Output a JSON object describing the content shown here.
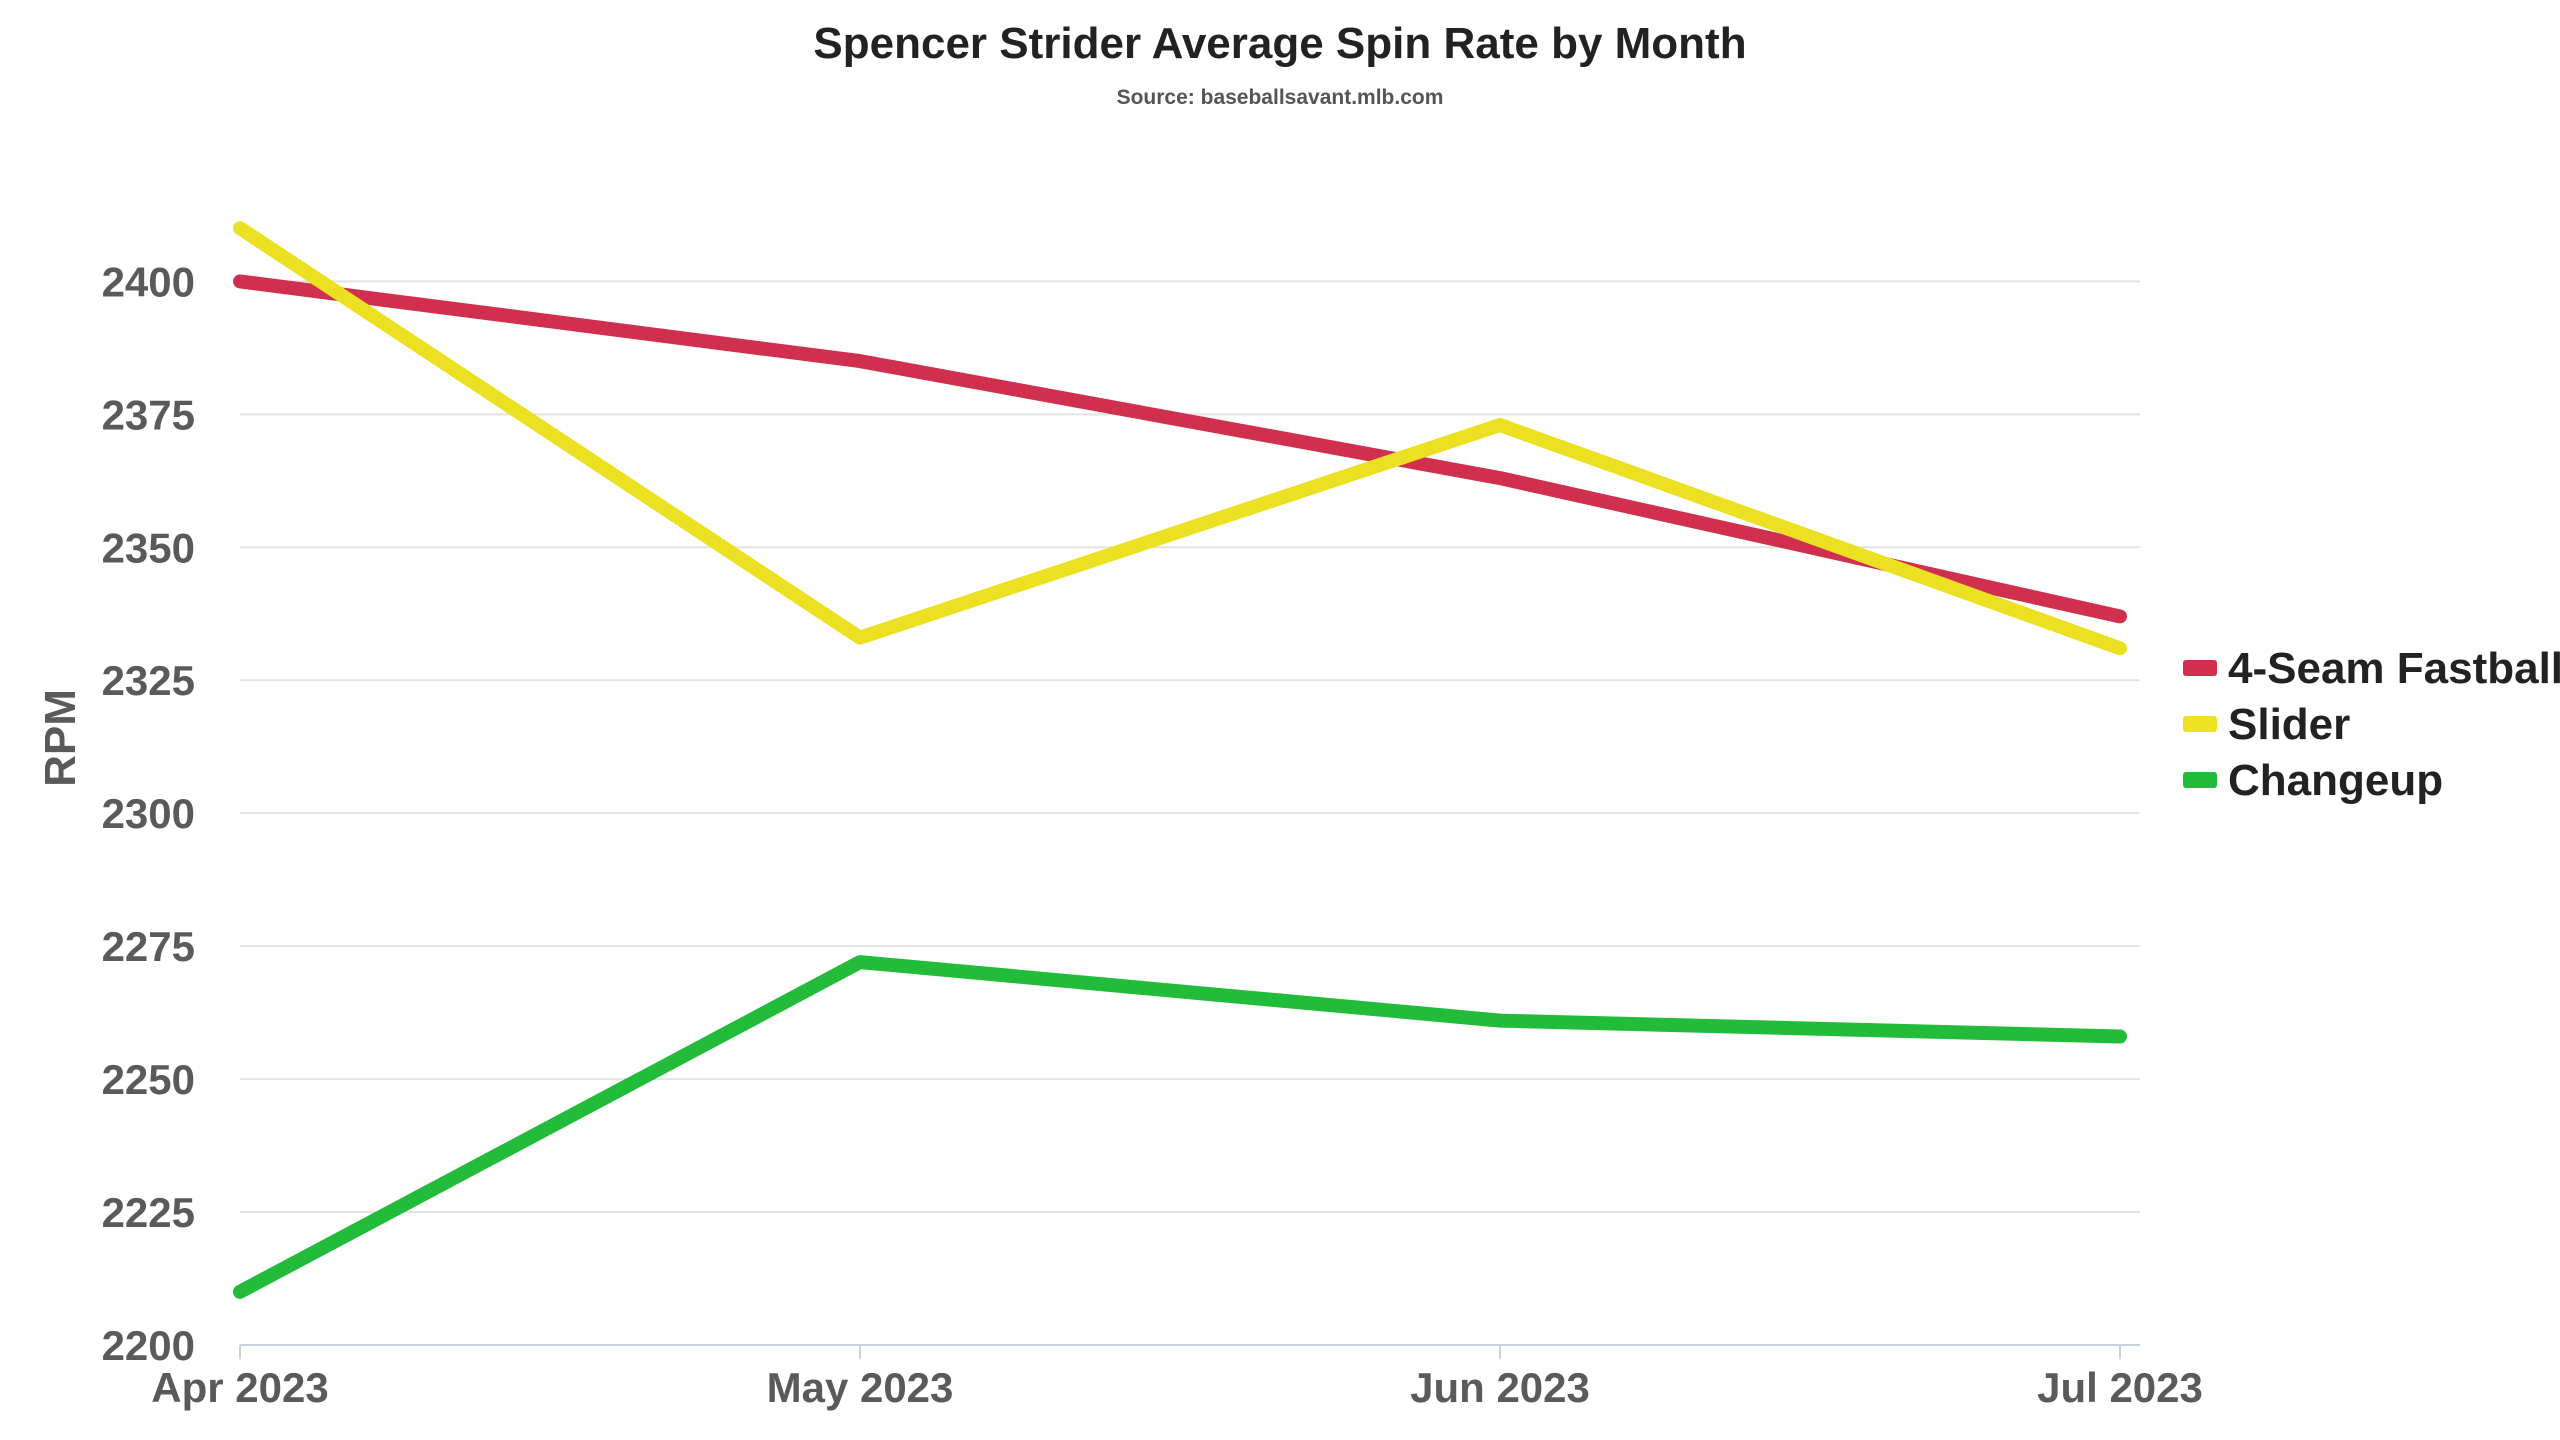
{
  "chart_data": {
    "type": "line",
    "title": "Spencer Strider Average Spin Rate by Month",
    "subtitle": "Source: baseballsavant.mlb.com",
    "xlabel": "",
    "ylabel": "RPM",
    "categories": [
      "Apr 2023",
      "May 2023",
      "Jun 2023",
      "Jul 2023"
    ],
    "ylim": [
      2200,
      2420
    ],
    "yticks": [
      2200,
      2225,
      2250,
      2275,
      2300,
      2325,
      2350,
      2375,
      2400
    ],
    "grid": true,
    "legend_position": "right",
    "series": [
      {
        "name": "4-Seam Fastball",
        "color": "#d0304e",
        "values": [
          2400,
          2385,
          2363,
          2337
        ]
      },
      {
        "name": "Slider",
        "color": "#ebe122",
        "values": [
          2410,
          2333,
          2373,
          2331
        ]
      },
      {
        "name": "Changeup",
        "color": "#22bb3a",
        "values": [
          2210,
          2272,
          2261,
          2258
        ]
      }
    ]
  }
}
